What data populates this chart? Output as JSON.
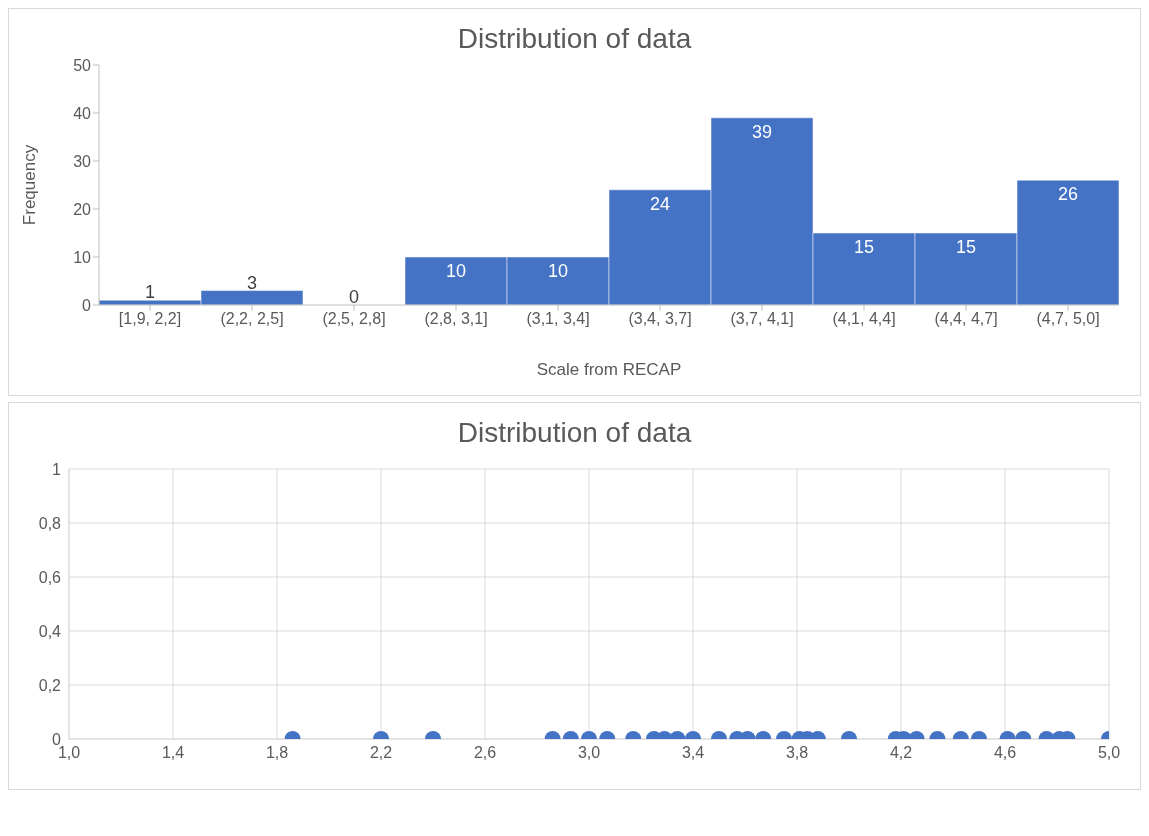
{
  "chart_data": [
    {
      "type": "bar",
      "title": "Distribution of data",
      "xlabel": "Scale from RECAP",
      "ylabel": "Frequency",
      "categories": [
        "[1,9, 2,2]",
        "(2,2, 2,5]",
        "(2,5, 2,8]",
        "(2,8, 3,1]",
        "(3,1, 3,4]",
        "(3,4, 3,7]",
        "(3,7, 4,1]",
        "(4,1, 4,4]",
        "(4,4, 4,7]",
        "(4,7, 5,0]"
      ],
      "values": [
        1,
        3,
        0,
        10,
        10,
        24,
        39,
        15,
        15,
        26
      ],
      "color": "#4472c4",
      "ylim": [
        0,
        50
      ],
      "yticks": [
        0,
        10,
        20,
        30,
        40,
        50
      ],
      "data_labels": true,
      "grid": false
    },
    {
      "type": "scatter",
      "title": "Distribution of data",
      "x": [
        1.86,
        2.2,
        2.4,
        2.86,
        2.93,
        3.0,
        3.07,
        3.17,
        3.25,
        3.29,
        3.34,
        3.4,
        3.5,
        3.57,
        3.61,
        3.67,
        3.75,
        3.81,
        3.84,
        3.88,
        4.0,
        4.18,
        4.21,
        4.26,
        4.34,
        4.43,
        4.5,
        4.61,
        4.67,
        4.76,
        4.81,
        4.84,
        5.0
      ],
      "values": [
        0,
        0,
        0,
        0,
        0,
        0,
        0,
        0,
        0,
        0,
        0,
        0,
        0,
        0,
        0,
        0,
        0,
        0,
        0,
        0,
        0,
        0,
        0,
        0,
        0,
        0,
        0,
        0,
        0,
        0,
        0,
        0,
        0
      ],
      "color": "#4472c4",
      "marker": "circle",
      "xlim": [
        1.0,
        5.0
      ],
      "xticks": [
        {
          "value": 1.0,
          "label": "1,0"
        },
        {
          "value": 1.4,
          "label": "1,4"
        },
        {
          "value": 1.8,
          "label": "1,8"
        },
        {
          "value": 2.2,
          "label": "2,2"
        },
        {
          "value": 2.6,
          "label": "2,6"
        },
        {
          "value": 3.0,
          "label": "3,0"
        },
        {
          "value": 3.4,
          "label": "3,4"
        },
        {
          "value": 3.8,
          "label": "3,8"
        },
        {
          "value": 4.2,
          "label": "4,2"
        },
        {
          "value": 4.6,
          "label": "4,6"
        },
        {
          "value": 5.0,
          "label": "5,0"
        }
      ],
      "ylim": [
        0,
        1
      ],
      "yticks": [
        0,
        {
          "value": 0.2,
          "label": "0,2"
        },
        {
          "value": 0.4,
          "label": "0,4"
        },
        {
          "value": 0.6,
          "label": "0,6"
        },
        {
          "value": 0.8,
          "label": "0,8"
        },
        1
      ],
      "grid": true
    }
  ]
}
